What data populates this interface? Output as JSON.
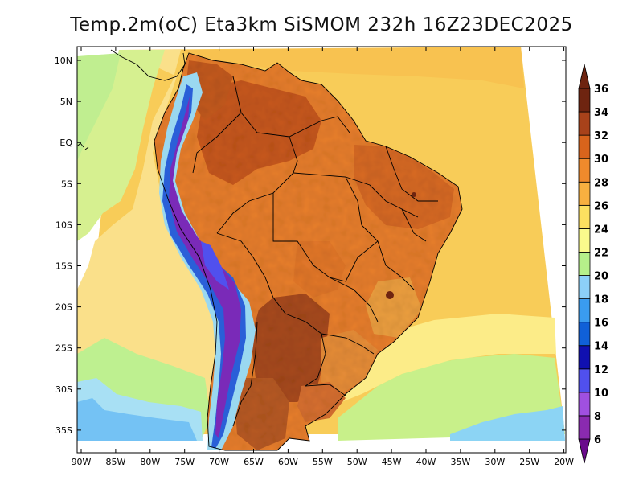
{
  "title": "Temp.2m(oC) Eta3km SiSMOM 232h 16Z23DEC2025",
  "map": {
    "lat_labels": [
      "10N",
      "5N",
      "EQ",
      "5S",
      "10S",
      "15S",
      "20S",
      "25S",
      "30S",
      "35S"
    ],
    "lon_labels": [
      "90W",
      "85W",
      "80W",
      "75W",
      "70W",
      "65W",
      "60W",
      "55W",
      "50W",
      "45W",
      "40W",
      "35W",
      "30W",
      "25W",
      "20W"
    ],
    "domain_lon": [
      -90,
      -20
    ],
    "domain_lat": [
      -38,
      12
    ]
  },
  "colorbar": {
    "ticks": [
      "6",
      "8",
      "10",
      "12",
      "14",
      "16",
      "18",
      "20",
      "22",
      "24",
      "26",
      "28",
      "30",
      "32",
      "34",
      "36"
    ],
    "colors": [
      "#6a0a8c",
      "#8a2ab0",
      "#a050e0",
      "#5050ee",
      "#1010b0",
      "#1060d8",
      "#3a9cf0",
      "#8cd0f8",
      "#b6f08a",
      "#fafa8c",
      "#fce060",
      "#f8b040",
      "#ef8a2c",
      "#d8641c",
      "#a8421a",
      "#6e2410"
    ],
    "colors_meaning": "temperature bins in deg C, from coldest (bottom) to hottest (top)"
  }
}
